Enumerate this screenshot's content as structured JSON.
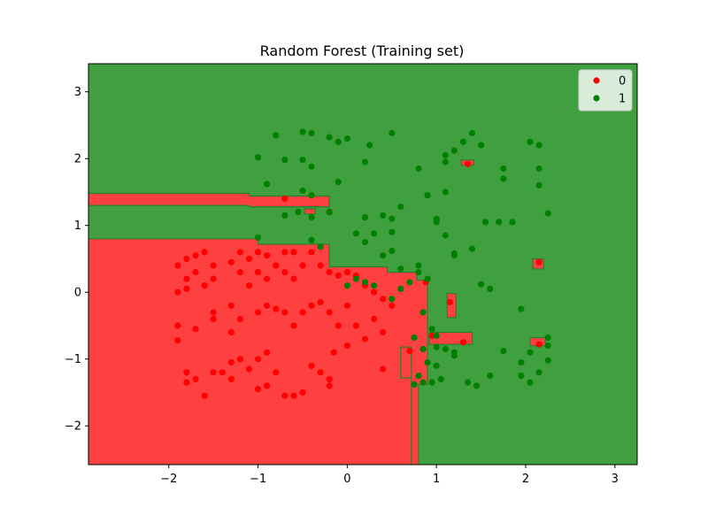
{
  "chart_data": {
    "type": "scatter",
    "title": "Random Forest (Training set)",
    "xlabel": "",
    "ylabel": "",
    "xlim": [
      -2.9,
      3.25
    ],
    "ylim": [
      -2.58,
      3.42
    ],
    "xticks": [
      -2,
      -1,
      0,
      1,
      2,
      3
    ],
    "yticks": [
      -2,
      -1,
      0,
      1,
      2,
      3
    ],
    "xtick_labels": [
      "−2",
      "−1",
      "0",
      "1",
      "2",
      "3"
    ],
    "ytick_labels": [
      "−2",
      "−1",
      "0",
      "1",
      "2",
      "3"
    ],
    "legend": {
      "position": "upper-right",
      "entries": [
        {
          "label": "0",
          "color": "#ff0000"
        },
        {
          "label": "1",
          "color": "#008000"
        }
      ]
    },
    "region_colors": {
      "0": "#ff4040",
      "1": "#40a040"
    },
    "decision_regions": {
      "class_0": [
        [
          [
            -2.9,
            0.8
          ],
          [
            -1.0,
            0.8
          ],
          [
            -1.0,
            0.72
          ],
          [
            -0.2,
            0.72
          ],
          [
            -0.2,
            0.38
          ],
          [
            0.45,
            0.38
          ],
          [
            0.45,
            0.3
          ],
          [
            0.78,
            0.3
          ],
          [
            0.78,
            0.18
          ],
          [
            0.9,
            0.18
          ],
          [
            0.9,
            -1.38
          ],
          [
            0.8,
            -1.38
          ],
          [
            0.8,
            -2.58
          ],
          [
            0.72,
            -2.58
          ],
          [
            0.72,
            -1.28
          ],
          [
            0.6,
            -1.28
          ],
          [
            0.6,
            -0.82
          ],
          [
            0.72,
            -0.82
          ],
          [
            0.72,
            -2.58
          ],
          [
            -2.9,
            -2.58
          ]
        ],
        [
          [
            -2.9,
            1.48
          ],
          [
            -1.1,
            1.48
          ],
          [
            -1.1,
            1.44
          ],
          [
            -0.2,
            1.44
          ],
          [
            -0.2,
            1.28
          ],
          [
            -1.1,
            1.28
          ],
          [
            -1.1,
            1.3
          ],
          [
            -2.9,
            1.3
          ]
        ],
        [
          [
            0.92,
            -0.6
          ],
          [
            1.4,
            -0.6
          ],
          [
            1.4,
            -0.78
          ],
          [
            0.92,
            -0.78
          ]
        ],
        [
          [
            1.12,
            -0.02
          ],
          [
            1.22,
            -0.02
          ],
          [
            1.22,
            -0.38
          ],
          [
            1.12,
            -0.38
          ]
        ],
        [
          [
            2.08,
            0.5
          ],
          [
            2.2,
            0.5
          ],
          [
            2.2,
            0.35
          ],
          [
            2.08,
            0.35
          ]
        ],
        [
          [
            2.05,
            -0.68
          ],
          [
            2.22,
            -0.68
          ],
          [
            2.22,
            -0.8
          ],
          [
            2.05,
            -0.8
          ]
        ],
        [
          [
            -0.48,
            1.25
          ],
          [
            -0.36,
            1.25
          ],
          [
            -0.36,
            1.17
          ],
          [
            -0.48,
            1.17
          ]
        ],
        [
          [
            1.28,
            1.98
          ],
          [
            1.42,
            1.98
          ],
          [
            1.42,
            1.9
          ],
          [
            1.28,
            1.9
          ]
        ]
      ]
    },
    "series": [
      {
        "name": "0",
        "color": "#ff0000",
        "points": [
          [
            -1.9,
            0.4
          ],
          [
            -1.8,
            0.5
          ],
          [
            -1.7,
            0.55
          ],
          [
            -1.6,
            0.6
          ],
          [
            -1.8,
            0.2
          ],
          [
            -1.9,
            0.0
          ],
          [
            -1.8,
            0.05
          ],
          [
            -1.7,
            0.3
          ],
          [
            -1.6,
            0.1
          ],
          [
            -1.5,
            0.2
          ],
          [
            -1.5,
            0.4
          ],
          [
            -1.3,
            0.45
          ],
          [
            -1.2,
            0.6
          ],
          [
            -1.1,
            0.5
          ],
          [
            -1.2,
            0.3
          ],
          [
            -1.0,
            0.6
          ],
          [
            -0.9,
            0.55
          ],
          [
            -0.8,
            0.4
          ],
          [
            -0.7,
            0.6
          ],
          [
            -0.6,
            0.6
          ],
          [
            -1.1,
            0.1
          ],
          [
            -1.0,
            0.3
          ],
          [
            -0.9,
            0.2
          ],
          [
            -0.7,
            0.3
          ],
          [
            -0.6,
            0.2
          ],
          [
            -0.5,
            0.4
          ],
          [
            -0.4,
            0.6
          ],
          [
            -0.3,
            0.4
          ],
          [
            -0.2,
            0.3
          ],
          [
            -0.1,
            0.25
          ],
          [
            -1.9,
            -0.5
          ],
          [
            -1.9,
            -0.72
          ],
          [
            -1.7,
            -0.55
          ],
          [
            -1.5,
            -0.3
          ],
          [
            -1.5,
            -0.4
          ],
          [
            -1.3,
            -0.2
          ],
          [
            -1.3,
            -0.6
          ],
          [
            -1.2,
            -0.4
          ],
          [
            -1.0,
            -0.3
          ],
          [
            -0.9,
            -0.2
          ],
          [
            -0.8,
            -0.25
          ],
          [
            -0.7,
            -0.3
          ],
          [
            -0.6,
            -0.5
          ],
          [
            -0.5,
            -0.3
          ],
          [
            -0.4,
            -0.2
          ],
          [
            -0.3,
            -0.15
          ],
          [
            -0.2,
            -0.3
          ],
          [
            -0.1,
            -0.5
          ],
          [
            -1.8,
            -1.2
          ],
          [
            -1.8,
            -1.35
          ],
          [
            -1.7,
            -1.3
          ],
          [
            -1.6,
            -1.55
          ],
          [
            -1.5,
            -1.2
          ],
          [
            -1.4,
            -1.2
          ],
          [
            -1.3,
            -1.05
          ],
          [
            -1.3,
            -1.3
          ],
          [
            -1.2,
            -1.0
          ],
          [
            -1.1,
            -1.15
          ],
          [
            -1.0,
            -1.0
          ],
          [
            -1.0,
            -1.45
          ],
          [
            -0.9,
            -0.9
          ],
          [
            -0.9,
            -1.4
          ],
          [
            -0.8,
            -1.2
          ],
          [
            -0.7,
            -1.55
          ],
          [
            -0.6,
            -1.55
          ],
          [
            -0.5,
            -1.5
          ],
          [
            -0.4,
            -1.1
          ],
          [
            -0.3,
            -1.2
          ],
          [
            -0.2,
            -1.3
          ],
          [
            -0.2,
            -1.4
          ],
          [
            -0.7,
            1.4
          ],
          [
            -0.2,
            1.2
          ],
          [
            0.0,
            0.3
          ],
          [
            0.1,
            0.25
          ],
          [
            0.2,
            0.1
          ],
          [
            0.3,
            0.0
          ],
          [
            0.4,
            -0.1
          ],
          [
            0.5,
            -0.2
          ],
          [
            0.0,
            -0.2
          ],
          [
            0.1,
            -0.5
          ],
          [
            0.2,
            -0.7
          ],
          [
            0.3,
            -0.4
          ],
          [
            0.4,
            -0.6
          ],
          [
            0.4,
            -1.15
          ],
          [
            0.7,
            -0.88
          ],
          [
            0.88,
            0.15
          ],
          [
            0.95,
            -0.65
          ],
          [
            1.3,
            -0.75
          ],
          [
            1.15,
            -0.15
          ],
          [
            1.35,
            1.92
          ],
          [
            2.15,
            0.45
          ],
          [
            2.15,
            -0.78
          ],
          [
            -0.15,
            -0.9
          ],
          [
            0.0,
            -0.8
          ]
        ]
      },
      {
        "name": "1",
        "color": "#008000",
        "points": [
          [
            -0.8,
            2.35
          ],
          [
            -0.5,
            2.4
          ],
          [
            -0.4,
            2.38
          ],
          [
            -0.2,
            2.32
          ],
          [
            -0.1,
            2.25
          ],
          [
            0.0,
            2.3
          ],
          [
            0.25,
            2.2
          ],
          [
            0.5,
            2.38
          ],
          [
            -1.0,
            2.02
          ],
          [
            -0.7,
            1.98
          ],
          [
            -0.5,
            1.98
          ],
          [
            -0.4,
            1.88
          ],
          [
            -0.1,
            1.65
          ],
          [
            0.2,
            1.95
          ],
          [
            -0.9,
            1.62
          ],
          [
            -0.5,
            1.52
          ],
          [
            -0.4,
            1.45
          ],
          [
            -0.7,
            1.15
          ],
          [
            -0.55,
            1.2
          ],
          [
            -0.4,
            1.12
          ],
          [
            -0.2,
            1.2
          ],
          [
            0.2,
            1.12
          ],
          [
            0.4,
            1.15
          ],
          [
            0.5,
            1.1
          ],
          [
            0.6,
            1.28
          ],
          [
            0.5,
            0.9
          ],
          [
            0.3,
            0.88
          ],
          [
            0.2,
            0.75
          ],
          [
            -1.0,
            0.82
          ],
          [
            -0.4,
            0.78
          ],
          [
            -0.3,
            0.68
          ],
          [
            0.1,
            0.88
          ],
          [
            0.8,
            1.85
          ],
          [
            0.9,
            1.45
          ],
          [
            1.0,
            1.1
          ],
          [
            1.0,
            1.05
          ],
          [
            1.1,
            2.05
          ],
          [
            1.1,
            1.95
          ],
          [
            1.2,
            2.12
          ],
          [
            1.3,
            2.25
          ],
          [
            1.4,
            2.38
          ],
          [
            1.5,
            2.2
          ],
          [
            1.1,
            1.5
          ],
          [
            1.1,
            0.85
          ],
          [
            1.2,
            0.55
          ],
          [
            1.2,
            0.58
          ],
          [
            1.4,
            0.65
          ],
          [
            1.5,
            0.12
          ],
          [
            1.6,
            0.05
          ],
          [
            1.55,
            1.05
          ],
          [
            1.7,
            1.05
          ],
          [
            1.85,
            1.05
          ],
          [
            1.75,
            1.85
          ],
          [
            1.75,
            1.7
          ],
          [
            2.05,
            2.25
          ],
          [
            2.15,
            2.2
          ],
          [
            2.15,
            1.85
          ],
          [
            2.15,
            1.6
          ],
          [
            2.25,
            1.18
          ],
          [
            0.4,
            0.55
          ],
          [
            0.5,
            0.62
          ],
          [
            0.6,
            0.35
          ],
          [
            0.8,
            0.4
          ],
          [
            0.8,
            0.3
          ],
          [
            0.9,
            0.2
          ],
          [
            0.7,
            0.15
          ],
          [
            0.6,
            0.05
          ],
          [
            0.5,
            -0.1
          ],
          [
            0.0,
            0.1
          ],
          [
            0.1,
            0.2
          ],
          [
            0.2,
            0.15
          ],
          [
            0.3,
            0.1
          ],
          [
            0.85,
            -0.3
          ],
          [
            0.95,
            -0.55
          ],
          [
            1.0,
            -0.65
          ],
          [
            0.75,
            -0.68
          ],
          [
            1.0,
            -0.82
          ],
          [
            1.1,
            -0.85
          ],
          [
            1.2,
            -0.9
          ],
          [
            1.2,
            -0.95
          ],
          [
            0.85,
            -0.85
          ],
          [
            0.9,
            -1.05
          ],
          [
            1.0,
            -1.1
          ],
          [
            0.8,
            -1.25
          ],
          [
            0.85,
            -1.35
          ],
          [
            0.95,
            -1.35
          ],
          [
            1.05,
            -1.3
          ],
          [
            0.75,
            -1.38
          ],
          [
            1.35,
            -1.35
          ],
          [
            1.45,
            -1.4
          ],
          [
            1.6,
            -1.25
          ],
          [
            1.75,
            -0.88
          ],
          [
            1.95,
            -1.05
          ],
          [
            1.95,
            -1.25
          ],
          [
            2.05,
            -1.35
          ],
          [
            2.05,
            -0.9
          ],
          [
            2.15,
            -1.2
          ],
          [
            2.25,
            -0.8
          ],
          [
            2.25,
            -0.68
          ],
          [
            2.25,
            -1.02
          ],
          [
            1.95,
            -0.25
          ]
        ]
      }
    ]
  }
}
